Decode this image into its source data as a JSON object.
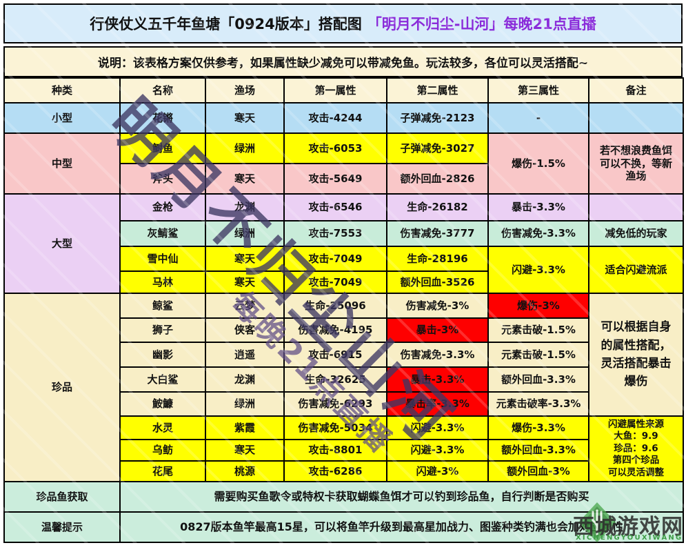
{
  "title": {
    "main": "行侠仗义五千年鱼塘「0924版本」搭配图",
    "stream": "「明月不归尘-山河」每晚21点直播"
  },
  "note": "说明：该表格方案仅供参考，如果属性缺少减免可以带减免鱼。玩法较多，各位可以灵活搭配~",
  "watermark": {
    "main": "明月不归尘山河",
    "sub": "每晚21点直播"
  },
  "logo": {
    "site": "西城游戏网",
    "latin": "XICHENGYOUXIWANG",
    "icon": "leaf-fork-icon"
  },
  "colors": {
    "titleBg": "#D8ECFA",
    "titleStream": "#8A2BD9",
    "noteBg": "#FBF3D6",
    "headerBg": "#FBF3D6",
    "blue": "#B5DDF4",
    "yellow": "#FFFF00",
    "pink": "#F9C7C8",
    "purple": "#EBD0F4",
    "green": "#C8ECD9",
    "cream": "#F8EEC6",
    "red": "#FE0000",
    "btm": "#CBEDDC",
    "wmMain": "#3E3863",
    "wmSub": "#5E4C85",
    "logoText": "#2F2F2F",
    "logoGreen": "#3E9C47"
  },
  "table": {
    "headers": [
      "种类",
      "名称",
      "渔场",
      "第一属性",
      "第二属性",
      "第三属性",
      "备注"
    ],
    "rows": [
      [
        {
          "t": "小型",
          "bg": "blue"
        },
        {
          "t": "花锵",
          "bg": "blue"
        },
        {
          "t": "寒天",
          "bg": "blue"
        },
        {
          "t": "攻击-4244",
          "bg": "blue"
        },
        {
          "t": "子弹减免-2123",
          "bg": "blue"
        },
        {
          "t": "-",
          "bg": "blue"
        },
        {
          "t": "",
          "bg": "blue"
        }
      ],
      [
        {
          "t": "中型",
          "bg": "pink",
          "rs": 2
        },
        {
          "t": "鲥鱼",
          "bg": "yellow"
        },
        {
          "t": "绿洲",
          "bg": "yellow"
        },
        {
          "t": "攻击-6053",
          "bg": "yellow"
        },
        {
          "t": "子弹减免-3027",
          "bg": "yellow"
        },
        {
          "t": "爆伤-1.5%",
          "bg": "pink",
          "rs": 2
        },
        {
          "t": "若不想浪费鱼饵\n可以不换，等新\n渔场",
          "bg": "pink",
          "rs": 2
        }
      ],
      [
        {
          "t": "斧头",
          "bg": "pink"
        },
        {
          "t": "寒天",
          "bg": "pink"
        },
        {
          "t": "攻击-5649",
          "bg": "pink"
        },
        {
          "t": "额外回血-2826",
          "bg": "pink"
        }
      ],
      [
        {
          "t": "大型",
          "bg": "purple",
          "rs": 4
        },
        {
          "t": "金枪",
          "bg": "purple"
        },
        {
          "t": "龙渊",
          "bg": "purple"
        },
        {
          "t": "攻击-6546",
          "bg": "purple"
        },
        {
          "t": "生命-26182",
          "bg": "purple"
        },
        {
          "t": "暴击-3.3%",
          "bg": "purple"
        },
        {
          "t": "",
          "bg": "purple"
        }
      ],
      [
        {
          "t": "灰鲭鲨",
          "bg": "green"
        },
        {
          "t": "绿洲",
          "bg": "green"
        },
        {
          "t": "攻击-7553",
          "bg": "green"
        },
        {
          "t": "伤害减免-3777",
          "bg": "green"
        },
        {
          "t": "伤害减免-3.3%",
          "bg": "green"
        },
        {
          "t": "减免低的玩家",
          "bg": "green"
        }
      ],
      [
        {
          "t": "雪中仙",
          "bg": "yellow"
        },
        {
          "t": "寒天",
          "bg": "yellow"
        },
        {
          "t": "攻击-7049",
          "bg": "yellow"
        },
        {
          "t": "生命-28196",
          "bg": "yellow"
        },
        {
          "t": "闪避-3.3%",
          "bg": "yellow",
          "rs": 2
        },
        {
          "t": "适合闪避流派",
          "bg": "yellow",
          "rs": 2
        }
      ],
      [
        {
          "t": "马林",
          "bg": "yellow"
        },
        {
          "t": "寒天",
          "bg": "yellow"
        },
        {
          "t": "攻击-7049",
          "bg": "yellow"
        },
        {
          "t": "额外回血-3526",
          "bg": "yellow"
        }
      ],
      [
        {
          "t": "珍品",
          "bg": "cream",
          "rs": 8
        },
        {
          "t": "鲸鲨",
          "bg": "cream"
        },
        {
          "t": "云梦",
          "bg": "cream"
        },
        {
          "t": "生命-25096",
          "bg": "cream"
        },
        {
          "t": "伤害减免-3%",
          "bg": "cream"
        },
        {
          "t": "爆伤-3%",
          "bg": "red"
        },
        {
          "t": "可以根据自身\n的属性搭配，\n灵活搭配暴击\n爆伤",
          "bg": "cream",
          "rs": 5,
          "big": true
        }
      ],
      [
        {
          "t": "狮子",
          "bg": "cream"
        },
        {
          "t": "侠客",
          "bg": "cream"
        },
        {
          "t": "伤害减免-4195",
          "bg": "cream"
        },
        {
          "t": "暴击-3%",
          "bg": "red"
        },
        {
          "t": "元素击破-1.5%",
          "bg": "cream"
        }
      ],
      [
        {
          "t": "幽影",
          "bg": "cream"
        },
        {
          "t": "逍遥",
          "bg": "cream"
        },
        {
          "t": "攻击-6915",
          "bg": "cream"
        },
        {
          "t": "伤害减免-3.3%",
          "bg": "cream"
        },
        {
          "t": "元素击破-1.5%",
          "bg": "cream"
        }
      ],
      [
        {
          "t": "大白鲨",
          "bg": "cream"
        },
        {
          "t": "龙渊",
          "bg": "cream"
        },
        {
          "t": "生命-32625",
          "bg": "cream"
        },
        {
          "t": "暴击-3.3%",
          "bg": "red"
        },
        {
          "t": "额外回血-3.3%",
          "bg": "cream"
        }
      ],
      [
        {
          "t": "鮟鱇",
          "bg": "cream"
        },
        {
          "t": "绿洲",
          "bg": "cream"
        },
        {
          "t": "伤害减免-6293",
          "bg": "cream"
        },
        {
          "t": "暴击率-3.3%",
          "bg": "red"
        },
        {
          "t": "元素击破率-3.3%",
          "bg": "cream"
        }
      ],
      [
        {
          "t": "水灵",
          "bg": "yellow"
        },
        {
          "t": "紫霞",
          "bg": "yellow"
        },
        {
          "t": "伤害减免-5034",
          "bg": "yellow"
        },
        {
          "t": "闪避-3.3%",
          "bg": "yellow"
        },
        {
          "t": "爆伤-3.3%",
          "bg": "yellow"
        },
        {
          "t": "闪避属性来源\n大鱼：9.9\n珍品：9.6\n第四个珍品\n可以灵活调整",
          "bg": "yellow",
          "rs": 3,
          "small": true
        }
      ],
      [
        {
          "t": "乌鲂",
          "bg": "yellow"
        },
        {
          "t": "寒天",
          "bg": "yellow"
        },
        {
          "t": "攻击-8801",
          "bg": "yellow"
        },
        {
          "t": "闪避-3.3%",
          "bg": "yellow"
        },
        {
          "t": "额外回血-3.3%",
          "bg": "yellow"
        }
      ],
      [
        {
          "t": "花尾",
          "bg": "yellow"
        },
        {
          "t": "桃源",
          "bg": "yellow"
        },
        {
          "t": "攻击-6286",
          "bg": "yellow"
        },
        {
          "t": "闪避-3%",
          "bg": "yellow"
        },
        {
          "t": "额外回血-3%",
          "bg": "yellow"
        }
      ],
      [
        {
          "t": "珍品鱼获取",
          "bg": "btm"
        },
        {
          "t": "需要购买鱼歌令或特权卡获取蝴蝶鱼饵才可以钓到珍品鱼，自行判断是否购买",
          "bg": "btm",
          "cs": 6,
          "wide": true
        }
      ],
      [
        {
          "t": "温馨提示",
          "bg": "btm"
        },
        {
          "t": "0827版本鱼竿最高15星，可以将鱼竿升级到最高星加战力、图鉴种类钓满也会加对应属性",
          "bg": "btm",
          "cs": 6,
          "wide": true
        }
      ]
    ]
  }
}
